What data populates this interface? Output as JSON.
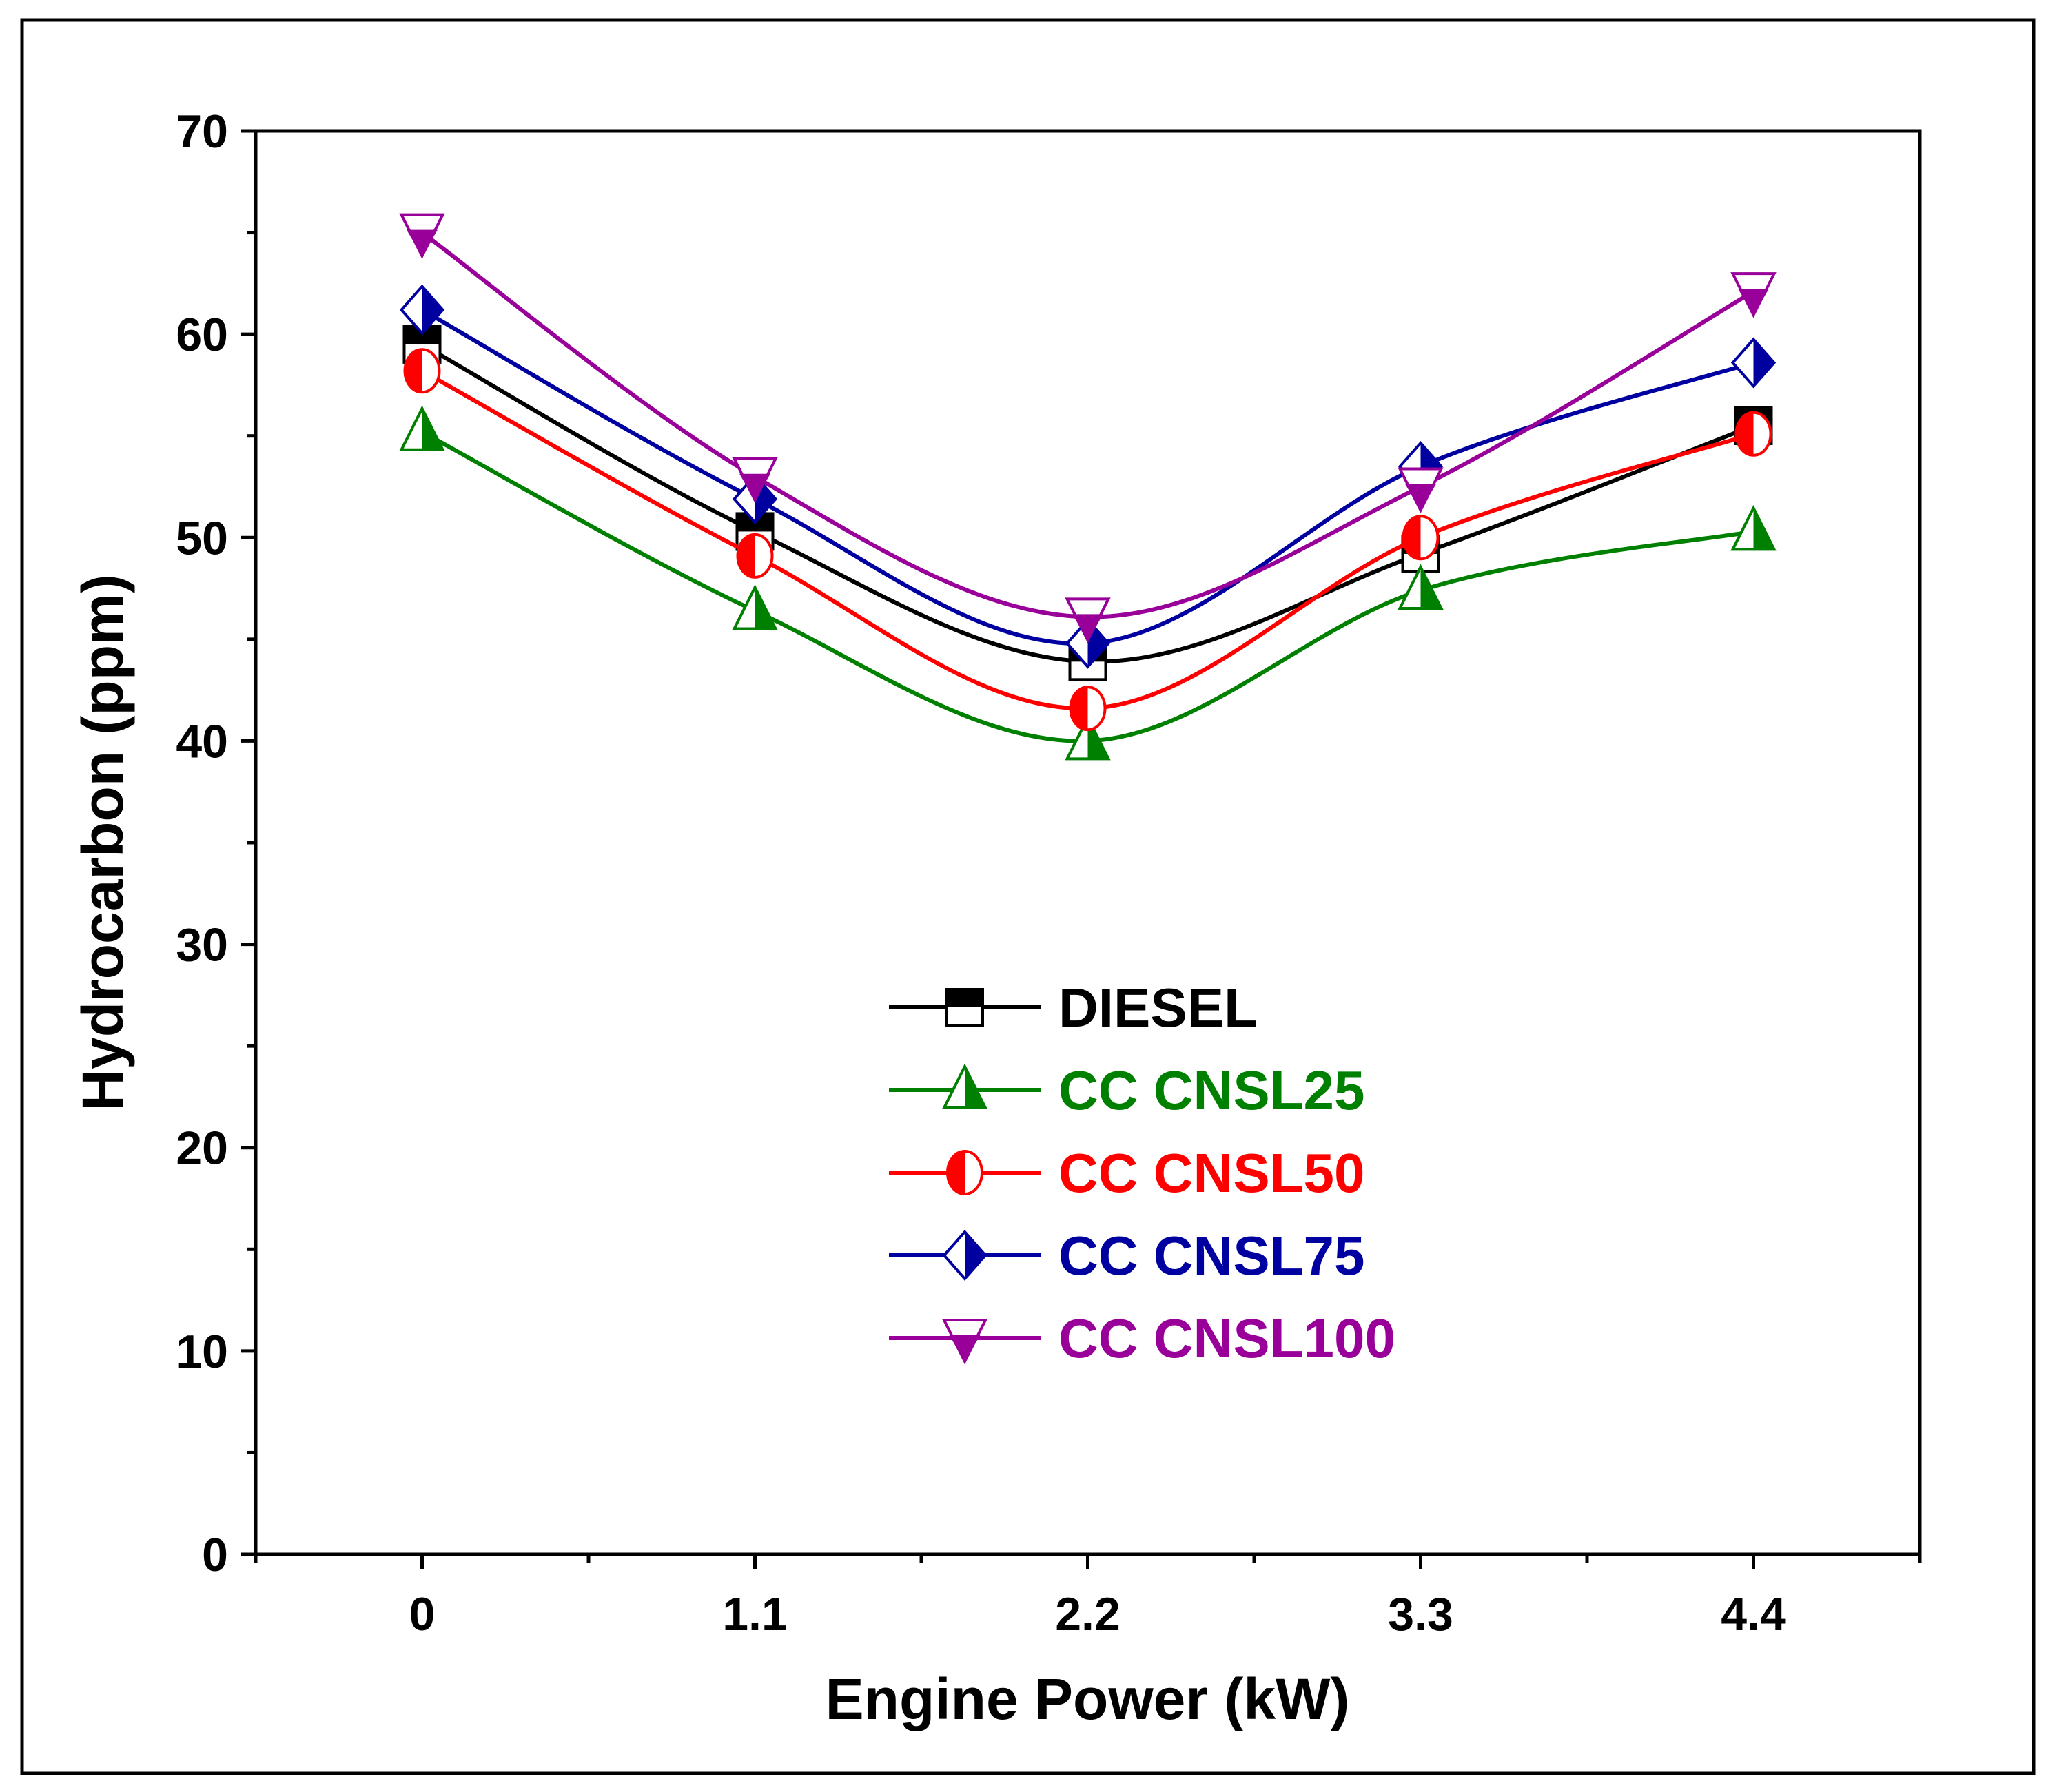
{
  "chart_data": {
    "type": "line",
    "title": "",
    "xlabel": "Engine Power (kW)",
    "ylabel": "Hydrocarbon (ppm)",
    "x": [
      0,
      1.1,
      2.2,
      3.3,
      4.4
    ],
    "x_tick_labels": [
      "0",
      "1.1",
      "2.2",
      "3.3",
      "4.4"
    ],
    "y_tick_labels": [
      "0",
      "10",
      "20",
      "30",
      "40",
      "50",
      "60",
      "70"
    ],
    "xlim": [
      -0.55,
      4.95
    ],
    "ylim": [
      0,
      70
    ],
    "grid": false,
    "legend_position": "center-bottom",
    "series": [
      {
        "name": "DIESEL",
        "color": "#000000",
        "marker": "half-square",
        "values": [
          59.5,
          50.3,
          43.9,
          49.2,
          55.5
        ]
      },
      {
        "name": "CC CNSL25",
        "color": "#008000",
        "marker": "half-triangle-up",
        "values": [
          55.2,
          46.4,
          40.0,
          47.4,
          50.3
        ]
      },
      {
        "name": "CC CNSL50",
        "color": "#ff0000",
        "marker": "half-circle",
        "values": [
          58.2,
          49.1,
          41.6,
          50.0,
          55.1
        ]
      },
      {
        "name": "CC CNSL75",
        "color": "#0000a0",
        "marker": "half-diamond",
        "values": [
          61.2,
          51.9,
          44.8,
          53.5,
          58.6
        ]
      },
      {
        "name": "CC CNSL100",
        "color": "#990099",
        "marker": "half-triangle-down",
        "values": [
          65.0,
          53.0,
          46.1,
          52.5,
          62.1
        ]
      }
    ]
  }
}
